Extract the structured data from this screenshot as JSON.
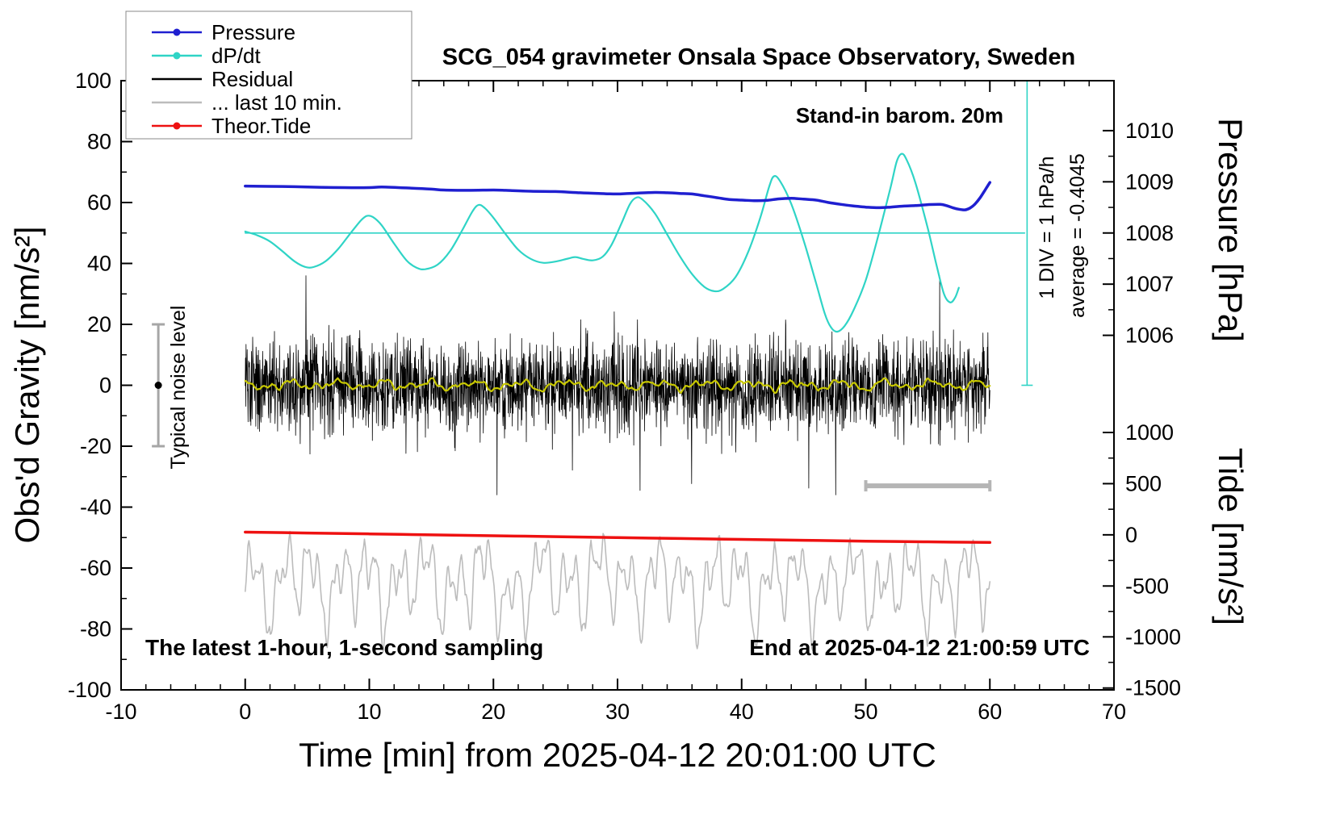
{
  "chart_data": {
    "type": "line",
    "title": "SCG_054 gravimeter Onsala Space Observatory, Sweden",
    "xlabel": "Time [min] from 2025-04-12 20:01:00 UTC",
    "ylabel": "Obs'd Gravity [nm/s²]",
    "y2label_top": "Pressure [hPa]",
    "y2label_bottom": "Tide [nm/s²]",
    "xlim": [
      -10,
      70
    ],
    "ylim": [
      -100,
      100
    ],
    "x_ticks": {
      "major": [
        -10,
        0,
        10,
        20,
        30,
        40,
        50,
        60,
        70
      ],
      "minor_step": 2
    },
    "y_ticks": {
      "major": [
        -100,
        -80,
        -60,
        -40,
        -20,
        0,
        20,
        40,
        60,
        80,
        100
      ],
      "minor_step": 10
    },
    "pressure_axis": {
      "ticks": [
        {
          "label": "1010",
          "y": 83.6
        },
        {
          "label": "1009",
          "y": 66.8
        },
        {
          "label": "1008",
          "y": 50.0
        },
        {
          "label": "1007",
          "y": 33.2
        },
        {
          "label": "1006",
          "y": 16.4
        }
      ]
    },
    "tide_axis": {
      "ticks": [
        {
          "label": "1000",
          "y": -15.5
        },
        {
          "label": "500",
          "y": -32.3
        },
        {
          "label": "0",
          "y": -49.1
        },
        {
          "label": "-500",
          "y": -65.9
        },
        {
          "label": "-1000",
          "y": -82.6
        },
        {
          "label": "-1500",
          "y": -99.4
        }
      ]
    },
    "annotations": {
      "stand_in": "Stand-in barom. 20m",
      "div_label": "1 DIV = 1 hPa/h",
      "avg_label": "average = -0.4045",
      "noise_label": "Typical noise level",
      "sampling_note": "The latest 1-hour, 1-second sampling",
      "end_note": "End at 2025-04-12 21:00:59 UTC"
    },
    "legend": {
      "items": [
        {
          "label": "Pressure",
          "color": "#1f1fd0",
          "marker": true
        },
        {
          "label": "dP/dt",
          "color": "#2fd4c6",
          "marker": true
        },
        {
          "label": "Residual",
          "color": "#000000",
          "marker": false
        },
        {
          "label": "... last 10 min.",
          "color": "#bcbcbc",
          "marker": false
        },
        {
          "label": "Theor.Tide",
          "color": "#ee1111",
          "marker": true
        }
      ]
    },
    "series": [
      {
        "name": "... last 10 min.",
        "kind": "wave",
        "color": "#bcbcbc",
        "width": 1.6,
        "x_start": 0,
        "x_end": 60,
        "n": 800,
        "center": -65,
        "components": [
          [
            8,
            2.3
          ],
          [
            7,
            1.15
          ],
          [
            4.5,
            4.9
          ],
          [
            3,
            0.55
          ]
        ],
        "jitter": 2.2,
        "seed": 4242
      },
      {
        "name": "Theor.Tide",
        "kind": "points",
        "color": "#ee1111",
        "width": 3.5,
        "smooth": true,
        "points": [
          [
            0,
            -48.2
          ],
          [
            5,
            -48.5
          ],
          [
            10,
            -48.8
          ],
          [
            15,
            -49.1
          ],
          [
            20,
            -49.4
          ],
          [
            25,
            -49.7
          ],
          [
            30,
            -50.0
          ],
          [
            35,
            -50.3
          ],
          [
            40,
            -50.6
          ],
          [
            45,
            -50.9
          ],
          [
            50,
            -51.2
          ],
          [
            55,
            -51.4
          ],
          [
            60,
            -51.6
          ]
        ]
      },
      {
        "name": "Residual",
        "kind": "spiky",
        "color": "#000000",
        "width": 0.8,
        "x_start": 0,
        "x_end": 60,
        "n": 2600,
        "center": 0,
        "sigma": 7.5,
        "spike_prob": 0.012,
        "spike_scale": 2.4,
        "clip": 36,
        "seed": 20250412
      },
      {
        "name": "Residual smooth",
        "kind": "wave",
        "color": "#c8c800",
        "width": 2.2,
        "x_start": 0,
        "x_end": 60,
        "n": 500,
        "center": 0,
        "components": [
          [
            0.9,
            3.7
          ],
          [
            0.7,
            1.9
          ],
          [
            0.5,
            0.85
          ]
        ],
        "jitter": 0.5,
        "seed": 77
      },
      {
        "name": "dP/dt baseline",
        "kind": "points",
        "color": "#2fd4c6",
        "width": 1.6,
        "smooth": false,
        "points": [
          [
            0,
            50
          ],
          [
            62.8,
            50
          ]
        ]
      },
      {
        "name": "dP/dt",
        "kind": "points",
        "color": "#2fd4c6",
        "width": 2.2,
        "smooth": true,
        "points": [
          [
            0,
            50.5
          ],
          [
            1,
            49.2
          ],
          [
            2,
            47.2
          ],
          [
            3,
            44.0
          ],
          [
            4,
            40.6
          ],
          [
            4.8,
            38.9
          ],
          [
            5.5,
            38.8
          ],
          [
            6.5,
            40.8
          ],
          [
            7.5,
            44.8
          ],
          [
            8.5,
            50.0
          ],
          [
            9.3,
            54.0
          ],
          [
            9.8,
            55.6
          ],
          [
            10.3,
            55.2
          ],
          [
            11,
            52.5
          ],
          [
            12,
            46.5
          ],
          [
            13,
            41.0
          ],
          [
            13.8,
            38.6
          ],
          [
            14.5,
            38.1
          ],
          [
            15.5,
            39.6
          ],
          [
            16.5,
            44.0
          ],
          [
            17.5,
            51.0
          ],
          [
            18.3,
            57.0
          ],
          [
            18.8,
            59.2
          ],
          [
            19.3,
            58.2
          ],
          [
            20,
            55.0
          ],
          [
            21,
            49.5
          ],
          [
            22,
            44.5
          ],
          [
            23,
            41.5
          ],
          [
            24,
            40.2
          ],
          [
            25,
            40.6
          ],
          [
            26,
            41.6
          ],
          [
            26.6,
            42.1
          ],
          [
            27.2,
            41.5
          ],
          [
            28,
            41.0
          ],
          [
            28.8,
            42.2
          ],
          [
            29.5,
            46.0
          ],
          [
            30.3,
            53.0
          ],
          [
            31,
            59.5
          ],
          [
            31.5,
            61.6
          ],
          [
            32,
            61.0
          ],
          [
            33,
            56.5
          ],
          [
            34,
            49.5
          ],
          [
            35,
            42.5
          ],
          [
            36,
            36.5
          ],
          [
            37,
            32.3
          ],
          [
            37.8,
            30.9
          ],
          [
            38.5,
            31.6
          ],
          [
            39.5,
            35.5
          ],
          [
            40.5,
            43.5
          ],
          [
            41.5,
            55.0
          ],
          [
            42.2,
            65.0
          ],
          [
            42.6,
            68.6
          ],
          [
            43.1,
            67.0
          ],
          [
            44,
            59.5
          ],
          [
            45,
            47.5
          ],
          [
            46,
            33.5
          ],
          [
            46.7,
            23.5
          ],
          [
            47.2,
            19.0
          ],
          [
            47.7,
            17.6
          ],
          [
            48.3,
            19.5
          ],
          [
            49,
            24.5
          ],
          [
            50,
            34.5
          ],
          [
            51,
            49.0
          ],
          [
            52,
            65.0
          ],
          [
            52.5,
            73.5
          ],
          [
            52.9,
            76.0
          ],
          [
            53.3,
            74.0
          ],
          [
            54,
            66.5
          ],
          [
            55,
            51.5
          ],
          [
            55.7,
            39.5
          ],
          [
            56.3,
            30.0
          ],
          [
            56.8,
            27.2
          ],
          [
            57.2,
            28.8
          ],
          [
            57.5,
            32.0
          ]
        ]
      },
      {
        "name": "Pressure",
        "kind": "points",
        "color": "#1f1fd0",
        "width": 3.5,
        "smooth": true,
        "points": [
          [
            0,
            65.4
          ],
          [
            2,
            65.3
          ],
          [
            4,
            65.2
          ],
          [
            6,
            65.0
          ],
          [
            8,
            64.9
          ],
          [
            10,
            64.9
          ],
          [
            11,
            65.1
          ],
          [
            13,
            64.8
          ],
          [
            15,
            64.4
          ],
          [
            16,
            64.1
          ],
          [
            18,
            64.0
          ],
          [
            20,
            64.1
          ],
          [
            21,
            64.0
          ],
          [
            23,
            63.7
          ],
          [
            25,
            63.6
          ],
          [
            27,
            63.2
          ],
          [
            29,
            62.9
          ],
          [
            30,
            62.8
          ],
          [
            31,
            63.0
          ],
          [
            33,
            63.3
          ],
          [
            34,
            63.2
          ],
          [
            35,
            63.0
          ],
          [
            36,
            62.8
          ],
          [
            37,
            62.2
          ],
          [
            38,
            61.6
          ],
          [
            39,
            61.0
          ],
          [
            40,
            60.8
          ],
          [
            41,
            60.6
          ],
          [
            42,
            60.7
          ],
          [
            43,
            61.2
          ],
          [
            44,
            61.4
          ],
          [
            45,
            61.1
          ],
          [
            46,
            60.8
          ],
          [
            47,
            60.0
          ],
          [
            48,
            59.4
          ],
          [
            49,
            58.9
          ],
          [
            50,
            58.5
          ],
          [
            51,
            58.3
          ],
          [
            52,
            58.5
          ],
          [
            53,
            58.8
          ],
          [
            54,
            59.0
          ],
          [
            55,
            59.3
          ],
          [
            56,
            59.4
          ],
          [
            56.5,
            59.0
          ],
          [
            57,
            58.3
          ],
          [
            57.5,
            57.8
          ],
          [
            58,
            57.6
          ],
          [
            58.4,
            58.2
          ],
          [
            58.8,
            59.5
          ],
          [
            59.2,
            61.5
          ],
          [
            59.6,
            64.0
          ],
          [
            60,
            66.6
          ]
        ]
      }
    ],
    "markers": {
      "noise_bar": {
        "x": -7,
        "y_low": -20,
        "y_high": 20,
        "dot_y": 0,
        "color": "#a6a6a6"
      },
      "scale_bar": {
        "x_start": 50,
        "x_end": 60,
        "y": -33,
        "color": "#b5b5b5"
      },
      "div_line": {
        "x": 63.0,
        "y_low": 0,
        "y_high": 100,
        "color": "#2fd4c6"
      }
    }
  }
}
